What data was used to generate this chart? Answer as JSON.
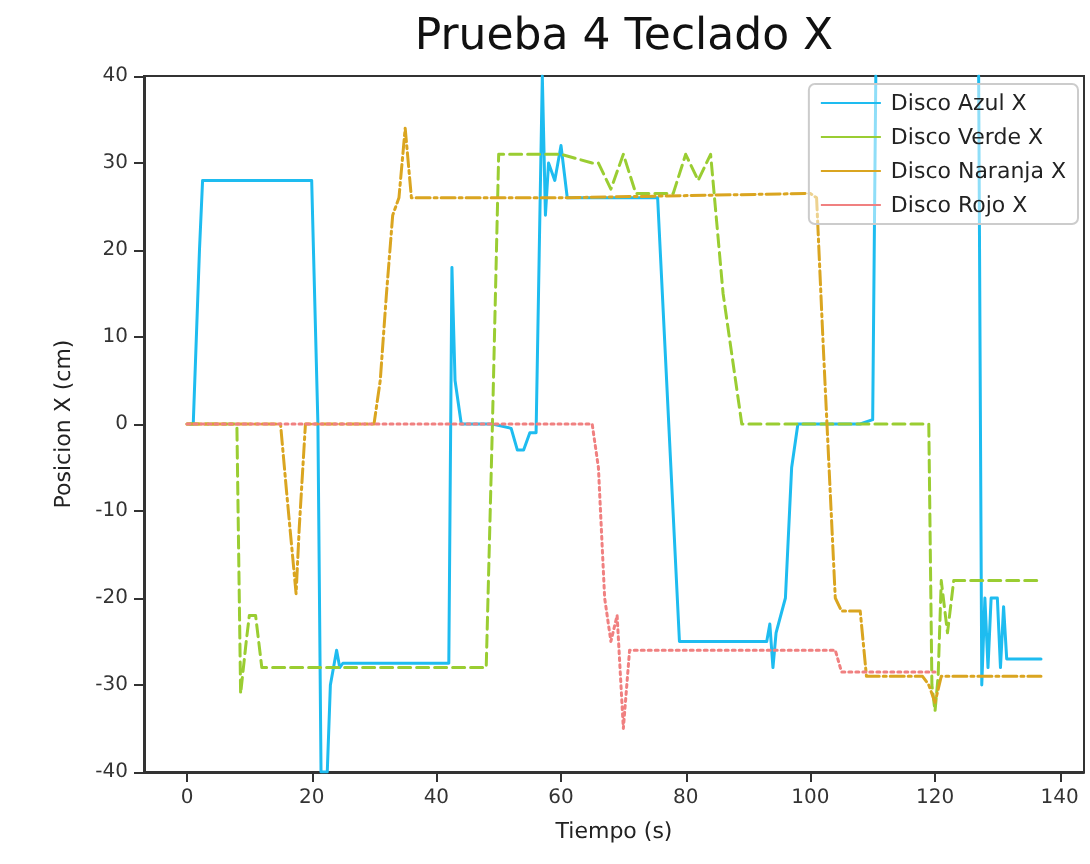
{
  "chart_data": {
    "type": "line",
    "title": "Prueba 4 Teclado X",
    "xlabel": "Tiempo (s)",
    "ylabel": "Posicion X (cm)",
    "xlim": [
      -6.9,
      143.9
    ],
    "xticks": [
      0,
      20,
      40,
      60,
      80,
      100,
      120,
      140
    ],
    "ylim": [
      -40,
      40
    ],
    "yticks": [
      -40,
      -30,
      -20,
      -10,
      0,
      10,
      20,
      30,
      40
    ],
    "grid": false,
    "legend": "top right",
    "marker": "none",
    "series": [
      {
        "name": "Disco Azul X",
        "color": "#1ebcf0",
        "line_style": "solid",
        "x": [
          0.5,
          1,
          2,
          2.5,
          3,
          20,
          21,
          21.5,
          22.5,
          23,
          24,
          24.5,
          25,
          42,
          42.5,
          43,
          44,
          49,
          52,
          53,
          54,
          55,
          56,
          57,
          57.5,
          58,
          59,
          60,
          61,
          65,
          70,
          75.5,
          79,
          93,
          93.5,
          94,
          94.5,
          96,
          97,
          98,
          108,
          110,
          110.5,
          111,
          126.5,
          127,
          127.5,
          128,
          128.5,
          129,
          130,
          130.5,
          131,
          131.5,
          132,
          137
        ],
        "values": [
          0,
          0,
          20,
          28,
          28,
          28,
          0,
          -40,
          -40,
          -30,
          -26,
          -28,
          -27.5,
          -27.5,
          18,
          5,
          0,
          0,
          -0.5,
          -3,
          -3,
          -1,
          -1,
          40,
          24,
          30,
          28,
          32,
          26,
          26,
          26,
          26,
          -25,
          -25,
          -23,
          -28,
          -24,
          -20,
          -5,
          0,
          0,
          0.5,
          40,
          null,
          null,
          40,
          -30,
          -20,
          -28,
          -20,
          -20,
          -28,
          -21,
          -27,
          -27,
          -27
        ]
      },
      {
        "name": "Disco Verde X",
        "color": "#9acd32",
        "line_style": "dashed",
        "x": [
          0,
          8,
          8.6,
          9.5,
          10,
          11,
          12,
          12.5,
          48,
          49,
          50,
          60,
          65,
          66,
          68,
          70,
          72,
          78,
          80,
          82,
          84,
          86,
          89,
          119,
          119.5,
          120,
          120.5,
          121,
          122,
          123,
          137
        ],
        "values": [
          0,
          0,
          -31,
          -25,
          -22,
          -22,
          -28,
          -28,
          -28,
          0,
          31,
          31,
          30,
          30,
          27,
          31,
          26.5,
          26.5,
          31,
          28,
          31,
          15,
          0,
          0,
          -30,
          -33,
          -29,
          -18,
          -24,
          -18,
          -18
        ]
      },
      {
        "name": "Disco Naranja X",
        "color": "#daa520",
        "line_style": "dashdot",
        "x": [
          0,
          15,
          16,
          17.5,
          18,
          19,
          30,
          31,
          32,
          33,
          34,
          35,
          36,
          37,
          60,
          100,
          101,
          102,
          103,
          104,
          105,
          108,
          109,
          118,
          119,
          120,
          121,
          137
        ],
        "values": [
          0,
          0,
          -8,
          -19.5,
          -12,
          0,
          0,
          5,
          15,
          24,
          26,
          34,
          26,
          26,
          26,
          26.5,
          26,
          10,
          -5,
          -20,
          -21.5,
          -21.5,
          -29,
          -29,
          -30,
          -32,
          -29,
          -29
        ]
      },
      {
        "name": "Disco Rojo X",
        "color": "#f08080",
        "line_style": "dotted",
        "x": [
          0,
          65,
          66,
          67,
          68,
          69,
          70,
          71,
          104,
          105,
          120
        ],
        "values": [
          0,
          0,
          -5,
          -20,
          -25,
          -22,
          -35,
          -26,
          -26,
          -28.5,
          -28.5
        ]
      }
    ]
  }
}
